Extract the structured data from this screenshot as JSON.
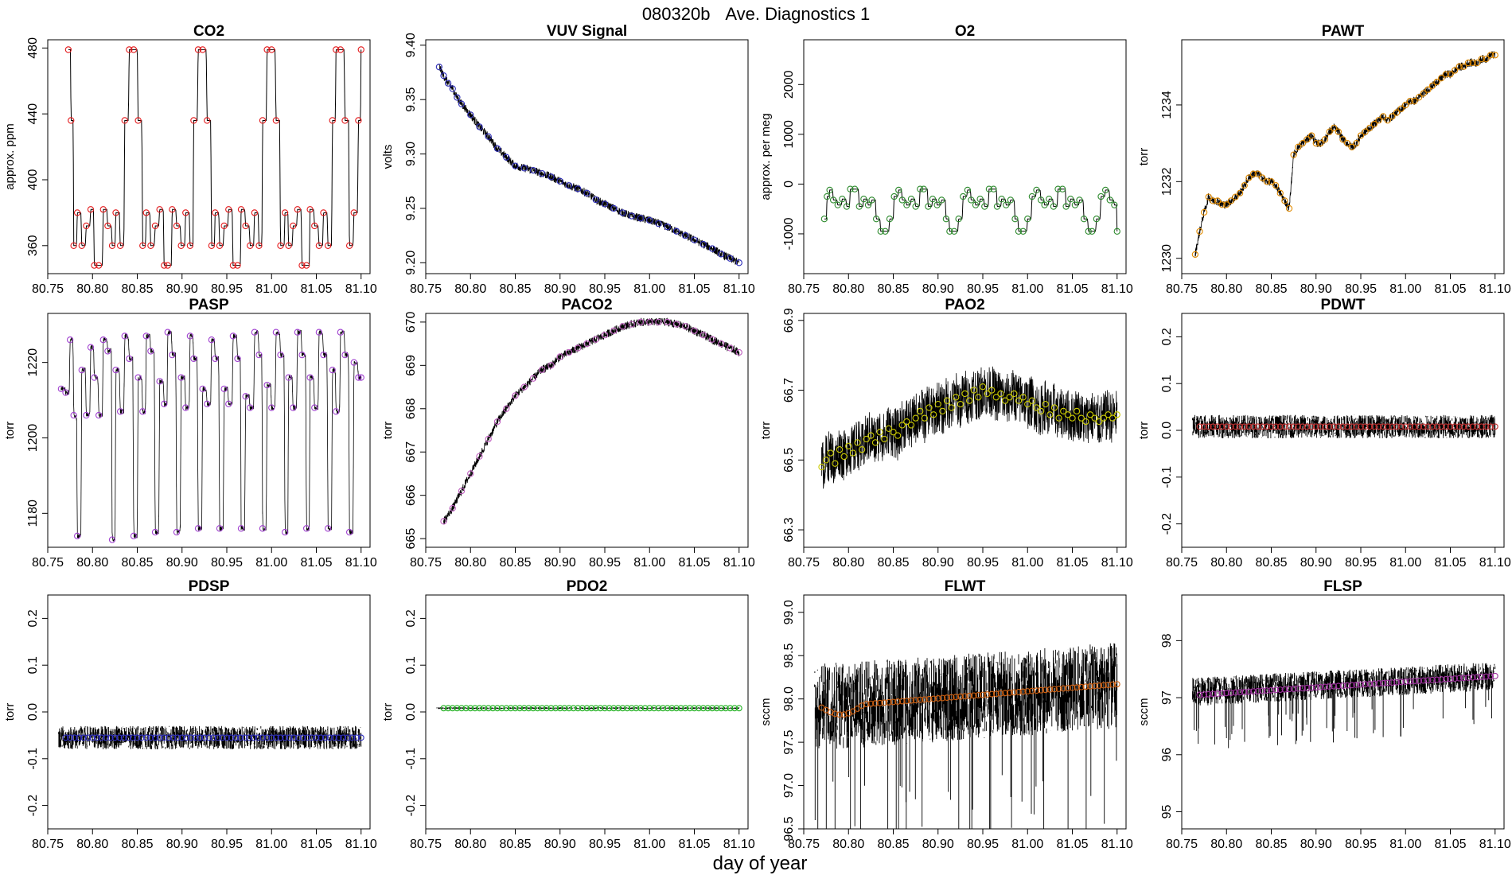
{
  "figure": {
    "title_id": "080320b",
    "title_text": "Ave. Diagnostics 1",
    "xlabel": "day of year"
  },
  "chart_data": [
    {
      "type": "line",
      "title": "CO2",
      "ylabel": "approx. ppm",
      "xlim": [
        80.75,
        81.11
      ],
      "ylim": [
        343,
        485
      ],
      "yticks": [
        360,
        400,
        440,
        480
      ],
      "xticks": [
        80.75,
        80.8,
        80.85,
        80.9,
        80.95,
        81.0,
        81.05,
        81.1
      ],
      "marker_color": "#e41a1c",
      "line_color": "#000000",
      "points_x": [
        80.773,
        80.776,
        80.779,
        80.783,
        80.788,
        80.793,
        80.798,
        80.802,
        80.807,
        80.812,
        80.817,
        80.822,
        80.826,
        80.831,
        80.836,
        80.841,
        80.846,
        80.851,
        80.856,
        80.86,
        80.865,
        80.87,
        80.875,
        80.88,
        80.884,
        80.889,
        80.894,
        80.899,
        80.904,
        80.909,
        80.913,
        80.918,
        80.923,
        80.928,
        80.933,
        80.937,
        80.942,
        80.947,
        80.952,
        80.957,
        80.962,
        80.966,
        80.971,
        80.976,
        80.981,
        80.986,
        80.99,
        80.995,
        81.0,
        81.005,
        81.01,
        81.015,
        81.019,
        81.024,
        81.029,
        81.034,
        81.039,
        81.043,
        81.048,
        81.053,
        81.058,
        81.063,
        81.068,
        81.072,
        81.077,
        81.082,
        81.087,
        81.092,
        81.097,
        81.1
      ],
      "points_y": [
        479,
        436,
        360,
        380,
        360,
        372,
        382,
        348,
        348,
        382,
        372,
        360,
        380,
        360,
        436,
        479,
        479,
        436,
        360,
        380,
        360,
        372,
        382,
        348,
        348,
        382,
        372,
        360,
        380,
        360,
        436,
        479,
        479,
        436,
        360,
        380,
        360,
        372,
        382,
        348,
        348,
        382,
        372,
        360,
        380,
        360,
        436,
        479,
        479,
        436,
        360,
        380,
        360,
        372,
        382,
        348,
        348,
        382,
        372,
        360,
        380,
        360,
        436,
        479,
        479,
        436,
        360,
        380,
        436,
        479
      ]
    },
    {
      "type": "line",
      "title": "VUV Signal",
      "ylabel": "volts",
      "xlim": [
        80.75,
        81.11
      ],
      "ylim": [
        9.19,
        9.405
      ],
      "yticks": [
        9.2,
        9.25,
        9.3,
        9.35,
        9.4
      ],
      "xticks": [
        80.75,
        80.8,
        80.85,
        80.9,
        80.95,
        81.0,
        81.05,
        81.1
      ],
      "marker_color": "#2b2bb8",
      "line_color": "#000000",
      "points_x": [
        80.765,
        80.77,
        80.775,
        80.78,
        80.785,
        80.79,
        80.8,
        80.81,
        80.82,
        80.83,
        80.84,
        80.85,
        80.86,
        80.87,
        80.88,
        80.89,
        80.9,
        80.91,
        80.92,
        80.93,
        80.94,
        80.95,
        80.96,
        80.97,
        80.98,
        80.99,
        81.0,
        81.01,
        81.02,
        81.03,
        81.04,
        81.05,
        81.06,
        81.07,
        81.08,
        81.09,
        81.1
      ],
      "points_y": [
        9.38,
        9.372,
        9.365,
        9.36,
        9.352,
        9.346,
        9.336,
        9.325,
        9.316,
        9.305,
        9.297,
        9.289,
        9.287,
        9.285,
        9.282,
        9.279,
        9.275,
        9.271,
        9.268,
        9.264,
        9.258,
        9.254,
        9.25,
        9.246,
        9.243,
        9.241,
        9.239,
        9.236,
        9.233,
        9.229,
        9.225,
        9.221,
        9.217,
        9.213,
        9.208,
        9.204,
        9.2
      ]
    },
    {
      "type": "line",
      "title": "O2",
      "ylabel": "approx. per meg",
      "xlim": [
        80.75,
        81.11
      ],
      "ylim": [
        -1800,
        2900
      ],
      "yticks": [
        -1000,
        0,
        1000,
        2000
      ],
      "xticks": [
        80.75,
        80.8,
        80.85,
        80.9,
        80.95,
        81.0,
        81.05,
        81.1
      ],
      "marker_color": "#2e8b2e",
      "line_color": "#000000",
      "points_x": [
        80.773,
        80.776,
        80.779,
        80.783,
        80.788,
        80.793,
        80.798,
        80.802,
        80.807,
        80.812,
        80.817,
        80.822,
        80.826,
        80.831,
        80.836,
        80.841,
        80.846,
        80.851,
        80.856,
        80.86,
        80.865,
        80.87,
        80.875,
        80.88,
        80.884,
        80.889,
        80.894,
        80.899,
        80.904,
        80.909,
        80.913,
        80.918,
        80.923,
        80.928,
        80.933,
        80.937,
        80.942,
        80.947,
        80.952,
        80.957,
        80.962,
        80.966,
        80.971,
        80.976,
        80.981,
        80.986,
        80.99,
        80.995,
        81.0,
        81.005,
        81.01,
        81.015,
        81.019,
        81.024,
        81.029,
        81.034,
        81.039,
        81.043,
        81.048,
        81.053,
        81.058,
        81.063,
        81.068,
        81.072,
        81.077,
        81.082,
        81.087,
        81.092,
        81.097,
        81.1
      ],
      "points_y": [
        -700,
        -250,
        -120,
        -320,
        -420,
        -300,
        -450,
        -100,
        -100,
        -450,
        -300,
        -420,
        -320,
        -700,
        -950,
        -950,
        -700,
        -250,
        -120,
        -320,
        -420,
        -300,
        -450,
        -100,
        -100,
        -450,
        -300,
        -420,
        -320,
        -700,
        -950,
        -950,
        -700,
        -250,
        -120,
        -320,
        -420,
        -300,
        -450,
        -100,
        -100,
        -450,
        -300,
        -420,
        -320,
        -700,
        -950,
        -950,
        -700,
        -250,
        -120,
        -320,
        -420,
        -300,
        -450,
        -100,
        -100,
        -450,
        -300,
        -420,
        -320,
        -700,
        -950,
        -950,
        -700,
        -250,
        -120,
        -320,
        -420,
        -950
      ]
    },
    {
      "type": "line",
      "title": "PAWT",
      "ylabel": "torr",
      "xlim": [
        80.75,
        81.11
      ],
      "ylim": [
        1229.6,
        1235.7
      ],
      "yticks": [
        1230,
        1232,
        1234
      ],
      "xticks": [
        80.75,
        80.8,
        80.85,
        80.9,
        80.95,
        81.0,
        81.05,
        81.1
      ],
      "marker_color": "#e08a00",
      "line_color": "#000000",
      "points_x": [
        80.765,
        80.77,
        80.775,
        80.78,
        80.785,
        80.79,
        80.795,
        80.8,
        80.805,
        80.81,
        80.815,
        80.82,
        80.825,
        80.83,
        80.835,
        80.84,
        80.845,
        80.85,
        80.855,
        80.86,
        80.865,
        80.87,
        80.875,
        80.88,
        80.885,
        80.89,
        80.895,
        80.9,
        80.905,
        80.91,
        80.915,
        80.92,
        80.925,
        80.93,
        80.935,
        80.94,
        80.945,
        80.95,
        80.955,
        80.96,
        80.965,
        80.97,
        80.975,
        80.98,
        80.985,
        80.99,
        80.995,
        81.0,
        81.005,
        81.01,
        81.015,
        81.02,
        81.025,
        81.03,
        81.035,
        81.04,
        81.045,
        81.05,
        81.055,
        81.06,
        81.065,
        81.07,
        81.075,
        81.08,
        81.085,
        81.09,
        81.095,
        81.1
      ],
      "points_y": [
        1230.1,
        1230.7,
        1231.2,
        1231.6,
        1231.5,
        1231.5,
        1231.4,
        1231.4,
        1231.5,
        1231.6,
        1231.7,
        1231.9,
        1232.1,
        1232.2,
        1232.2,
        1232.1,
        1232.0,
        1232.0,
        1231.9,
        1231.7,
        1231.5,
        1231.3,
        1232.7,
        1232.9,
        1233.0,
        1233.1,
        1233.2,
        1233.0,
        1233.0,
        1233.1,
        1233.3,
        1233.4,
        1233.3,
        1233.1,
        1233.0,
        1232.9,
        1233.0,
        1233.2,
        1233.3,
        1233.4,
        1233.5,
        1233.6,
        1233.7,
        1233.6,
        1233.7,
        1233.8,
        1233.9,
        1234.0,
        1234.1,
        1234.1,
        1234.2,
        1234.3,
        1234.4,
        1234.5,
        1234.6,
        1234.7,
        1234.8,
        1234.8,
        1234.9,
        1235.0,
        1235.0,
        1235.1,
        1235.1,
        1235.1,
        1235.2,
        1235.2,
        1235.3,
        1235.3
      ]
    },
    {
      "type": "line",
      "title": "PASP",
      "ylabel": "torr",
      "xlim": [
        80.75,
        81.11
      ],
      "ylim": [
        1171,
        1233
      ],
      "yticks": [
        1180,
        1200,
        1220
      ],
      "xticks": [
        80.75,
        80.8,
        80.85,
        80.9,
        80.95,
        81.0,
        81.05,
        81.1
      ],
      "marker_color": "#a040d0",
      "line_color": "#000000",
      "points_x": [
        80.765,
        80.77,
        80.775,
        80.779,
        80.783,
        80.788,
        80.793,
        80.798,
        80.802,
        80.807,
        80.812,
        80.817,
        80.822,
        80.826,
        80.831,
        80.836,
        80.841,
        80.846,
        80.851,
        80.856,
        80.86,
        80.865,
        80.87,
        80.875,
        80.88,
        80.884,
        80.889,
        80.894,
        80.899,
        80.904,
        80.909,
        80.913,
        80.918,
        80.923,
        80.928,
        80.933,
        80.937,
        80.942,
        80.947,
        80.952,
        80.957,
        80.962,
        80.966,
        80.971,
        80.976,
        80.981,
        80.986,
        80.99,
        80.995,
        81.0,
        81.005,
        81.01,
        81.015,
        81.019,
        81.024,
        81.029,
        81.034,
        81.039,
        81.043,
        81.048,
        81.053,
        81.058,
        81.063,
        81.068,
        81.072,
        81.077,
        81.082,
        81.087,
        81.092,
        81.097,
        81.1
      ],
      "points_y": [
        1213,
        1212,
        1226,
        1206,
        1174,
        1218,
        1206,
        1224,
        1216,
        1206,
        1226,
        1223,
        1173,
        1218,
        1207,
        1227,
        1221,
        1174,
        1216,
        1207,
        1227,
        1223,
        1175,
        1215,
        1209,
        1228,
        1222,
        1175,
        1216,
        1208,
        1227,
        1221,
        1176,
        1213,
        1209,
        1226,
        1221,
        1176,
        1213,
        1209,
        1227,
        1221,
        1176,
        1211,
        1208,
        1228,
        1222,
        1176,
        1214,
        1208,
        1228,
        1222,
        1175,
        1216,
        1208,
        1228,
        1222,
        1176,
        1216,
        1208,
        1228,
        1222,
        1176,
        1218,
        1207,
        1228,
        1222,
        1175,
        1220,
        1216,
        1216
      ]
    },
    {
      "type": "line",
      "title": "PACO2",
      "ylabel": "torr",
      "xlim": [
        80.75,
        81.11
      ],
      "ylim": [
        664.8,
        670.2
      ],
      "yticks": [
        665,
        666,
        667,
        668,
        669,
        670
      ],
      "xticks": [
        80.75,
        80.8,
        80.85,
        80.9,
        80.95,
        81.0,
        81.05,
        81.1
      ],
      "marker_color": "#c060c0",
      "line_color": "#000000",
      "points_x": [
        80.77,
        80.78,
        80.79,
        80.8,
        80.81,
        80.82,
        80.83,
        80.84,
        80.85,
        80.86,
        80.87,
        80.88,
        80.89,
        80.9,
        80.91,
        80.92,
        80.93,
        80.94,
        80.95,
        80.96,
        80.97,
        80.98,
        80.99,
        81.0,
        81.01,
        81.02,
        81.03,
        81.04,
        81.05,
        81.06,
        81.07,
        81.08,
        81.09,
        81.1
      ],
      "points_y": [
        665.4,
        665.7,
        666.1,
        666.5,
        666.9,
        667.3,
        667.7,
        668.0,
        668.3,
        668.5,
        668.7,
        668.9,
        669.0,
        669.2,
        669.3,
        669.4,
        669.5,
        669.6,
        669.7,
        669.8,
        669.9,
        669.95,
        670.0,
        670.0,
        670.0,
        670.0,
        669.95,
        669.9,
        669.8,
        669.7,
        669.6,
        669.5,
        669.4,
        669.3
      ]
    },
    {
      "type": "line",
      "title": "PAO2",
      "ylabel": "torr",
      "xlim": [
        80.75,
        81.11
      ],
      "ylim": [
        66.25,
        66.92
      ],
      "yticks": [
        66.3,
        66.5,
        66.7,
        66.9
      ],
      "xticks": [
        80.75,
        80.8,
        80.85,
        80.9,
        80.95,
        81.0,
        81.05,
        81.1
      ],
      "marker_color": "#cccc00",
      "line_color": "#000000",
      "points_x": [
        80.77,
        80.775,
        80.78,
        80.785,
        80.79,
        80.795,
        80.8,
        80.805,
        80.81,
        80.815,
        80.82,
        80.825,
        80.83,
        80.835,
        80.84,
        80.845,
        80.85,
        80.855,
        80.86,
        80.865,
        80.87,
        80.875,
        80.88,
        80.885,
        80.89,
        80.895,
        80.9,
        80.905,
        80.91,
        80.915,
        80.92,
        80.925,
        80.93,
        80.935,
        80.94,
        80.945,
        80.95,
        80.955,
        80.96,
        80.965,
        80.97,
        80.975,
        80.98,
        80.985,
        80.99,
        80.995,
        81.0,
        81.005,
        81.01,
        81.015,
        81.02,
        81.025,
        81.03,
        81.035,
        81.04,
        81.045,
        81.05,
        81.055,
        81.06,
        81.065,
        81.07,
        81.075,
        81.08,
        81.085,
        81.09,
        81.095,
        81.1
      ],
      "points_y": [
        66.48,
        66.5,
        66.52,
        66.49,
        66.53,
        66.51,
        66.54,
        66.52,
        66.55,
        66.53,
        66.56,
        66.57,
        66.55,
        66.58,
        66.56,
        66.59,
        66.58,
        66.57,
        66.6,
        66.61,
        66.6,
        66.62,
        66.64,
        66.62,
        66.65,
        66.63,
        66.66,
        66.64,
        66.67,
        66.65,
        66.68,
        66.66,
        66.69,
        66.67,
        66.7,
        66.68,
        66.71,
        66.69,
        66.7,
        66.68,
        66.69,
        66.67,
        66.68,
        66.69,
        66.67,
        66.68,
        66.66,
        66.67,
        66.65,
        66.64,
        66.66,
        66.63,
        66.65,
        66.62,
        66.64,
        66.63,
        66.62,
        66.64,
        66.62,
        66.61,
        66.63,
        66.62,
        66.61,
        66.62,
        66.63,
        66.62,
        66.63
      ]
    },
    {
      "type": "line",
      "title": "PDWT",
      "ylabel": "torr",
      "xlim": [
        80.75,
        81.11
      ],
      "ylim": [
        -0.25,
        0.25
      ],
      "yticks": [
        -0.2,
        -0.1,
        0.0,
        0.1,
        0.2
      ],
      "xticks": [
        80.75,
        80.8,
        80.85,
        80.9,
        80.95,
        81.0,
        81.05,
        81.1
      ],
      "marker_color": "#c03030",
      "line_color": "#000000",
      "band_center": 0.008,
      "band_half_width": 0.025,
      "marker_value": 0.008
    },
    {
      "type": "line",
      "title": "PDSP",
      "ylabel": "torr",
      "xlim": [
        80.75,
        81.11
      ],
      "ylim": [
        -0.25,
        0.25
      ],
      "yticks": [
        -0.2,
        -0.1,
        0.0,
        0.1,
        0.2
      ],
      "xticks": [
        80.75,
        80.8,
        80.85,
        80.9,
        80.95,
        81.0,
        81.05,
        81.1
      ],
      "marker_color": "#3030c0",
      "line_color": "#000000",
      "band_center": -0.055,
      "band_half_width": 0.025,
      "marker_value": -0.055
    },
    {
      "type": "line",
      "title": "PDO2",
      "ylabel": "torr",
      "xlim": [
        80.75,
        81.11
      ],
      "ylim": [
        -0.25,
        0.25
      ],
      "yticks": [
        -0.2,
        -0.1,
        0.0,
        0.1,
        0.2
      ],
      "xticks": [
        80.75,
        80.8,
        80.85,
        80.9,
        80.95,
        81.0,
        81.05,
        81.1
      ],
      "marker_color": "#20b020",
      "line_color": "#000000",
      "band_center": 0.008,
      "band_half_width": 0.002,
      "marker_value": 0.008
    },
    {
      "type": "line",
      "title": "FLWT",
      "ylabel": "sccm",
      "xlim": [
        80.75,
        81.11
      ],
      "ylim": [
        96.5,
        99.2
      ],
      "yticks": [
        96.5,
        97.0,
        97.5,
        98.0,
        98.5,
        99.0
      ],
      "xticks": [
        80.75,
        80.8,
        80.85,
        80.9,
        80.95,
        81.0,
        81.05,
        81.1
      ],
      "marker_color": "#d06010",
      "line_color": "#000000",
      "band_start": 97.9,
      "band_end": 98.15,
      "band_half_width": 0.5,
      "marker_start": 97.9,
      "marker_end": 98.17
    },
    {
      "type": "line",
      "title": "FLSP",
      "ylabel": "sccm",
      "xlim": [
        80.75,
        81.11
      ],
      "ylim": [
        94.7,
        98.8
      ],
      "yticks": [
        95,
        96,
        97,
        98
      ],
      "xticks": [
        80.75,
        80.8,
        80.85,
        80.9,
        80.95,
        81.0,
        81.05,
        81.1
      ],
      "marker_color": "#a030a0",
      "line_color": "#000000",
      "band_start": 97.1,
      "band_end": 97.38,
      "band_half_width": 0.25,
      "marker_start": 97.05,
      "marker_end": 97.38
    }
  ]
}
